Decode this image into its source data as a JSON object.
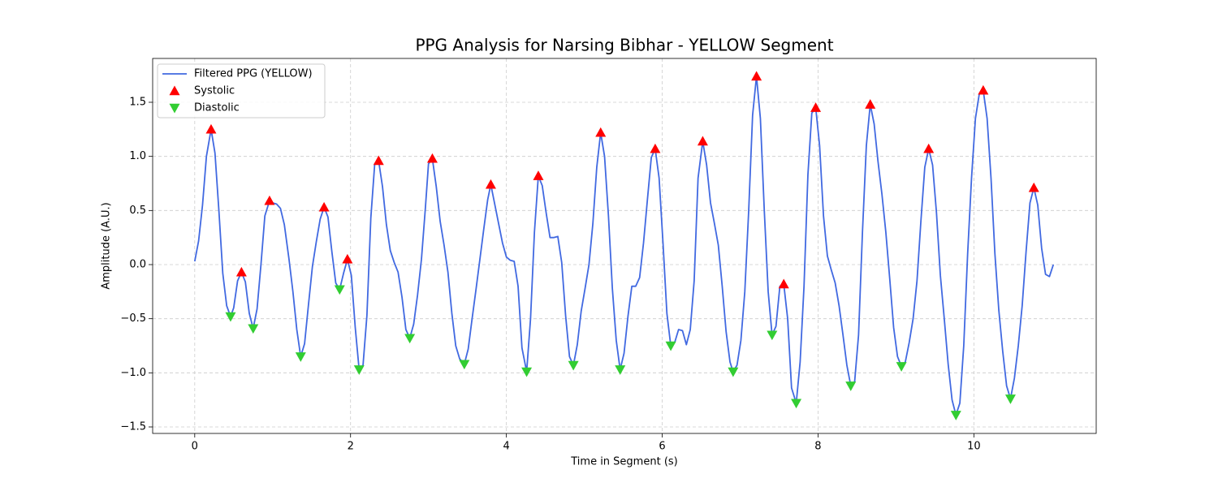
{
  "chart_data": {
    "type": "line",
    "title": "PPG Analysis for Narsing Bibhar - YELLOW Segment",
    "x_label": "Time in Segment (s)",
    "y_label": "Amplitude (A.U.)",
    "xlim": [
      -0.54,
      11.57
    ],
    "ylim": [
      -1.56,
      1.905
    ],
    "xticks": [
      0,
      2,
      4,
      6,
      8,
      10
    ],
    "yticks": [
      {
        "value": -1.5,
        "label": "−1.5"
      },
      {
        "value": -1.0,
        "label": "−1.0"
      },
      {
        "value": -0.5,
        "label": "−0.5"
      },
      {
        "value": 0,
        "label": "0.0"
      },
      {
        "value": 0.5,
        "label": "0.5"
      },
      {
        "value": 1.0,
        "label": "1.0"
      },
      {
        "value": 1.5,
        "label": "1.5"
      }
    ],
    "grid": true,
    "legend": "upper-left",
    "series": [
      {
        "name": "Filtered PPG (YELLOW)",
        "type": "line",
        "color": "#4169e1",
        "x": [
          0,
          0.05,
          0.1,
          0.15,
          0.21,
          0.26,
          0.31,
          0.36,
          0.41,
          0.46,
          0.5,
          0.55,
          0.6,
          0.65,
          0.7,
          0.75,
          0.8,
          0.85,
          0.9,
          0.96,
          1.0,
          1.05,
          1.1,
          1.15,
          1.21,
          1.26,
          1.31,
          1.36,
          1.41,
          1.46,
          1.51,
          1.56,
          1.61,
          1.66,
          1.71,
          1.76,
          1.81,
          1.86,
          1.91,
          1.96,
          2.01,
          2.06,
          2.11,
          2.16,
          2.21,
          2.26,
          2.31,
          2.36,
          2.41,
          2.46,
          2.51,
          2.56,
          2.61,
          2.66,
          2.71,
          2.76,
          2.81,
          2.86,
          2.91,
          2.96,
          3.0,
          3.05,
          3.1,
          3.15,
          3.2,
          3.25,
          3.3,
          3.35,
          3.4,
          3.46,
          3.51,
          3.56,
          3.61,
          3.66,
          3.71,
          3.76,
          3.8,
          3.85,
          3.9,
          3.95,
          4.0,
          4.05,
          4.1,
          4.15,
          4.2,
          4.26,
          4.31,
          4.36,
          4.41,
          4.46,
          4.51,
          4.56,
          4.61,
          4.66,
          4.71,
          4.76,
          4.81,
          4.86,
          4.91,
          4.96,
          5.01,
          5.06,
          5.11,
          5.16,
          5.21,
          5.26,
          5.31,
          5.36,
          5.41,
          5.46,
          5.51,
          5.56,
          5.61,
          5.66,
          5.71,
          5.76,
          5.81,
          5.86,
          5.91,
          5.96,
          6.01,
          6.06,
          6.11,
          6.16,
          6.21,
          6.26,
          6.31,
          6.36,
          6.41,
          6.46,
          6.52,
          6.57,
          6.62,
          6.67,
          6.72,
          6.77,
          6.82,
          6.87,
          6.91,
          6.96,
          7.01,
          7.06,
          7.11,
          7.16,
          7.21,
          7.26,
          7.31,
          7.36,
          7.41,
          7.46,
          7.51,
          7.56,
          7.61,
          7.66,
          7.72,
          7.77,
          7.82,
          7.87,
          7.92,
          7.97,
          8.02,
          8.07,
          8.12,
          8.17,
          8.22,
          8.27,
          8.32,
          8.37,
          8.42,
          8.47,
          8.52,
          8.57,
          8.62,
          8.67,
          8.72,
          8.77,
          8.82,
          8.87,
          8.92,
          8.97,
          9.02,
          9.07,
          9.12,
          9.17,
          9.22,
          9.27,
          9.32,
          9.37,
          9.42,
          9.47,
          9.52,
          9.57,
          9.62,
          9.67,
          9.72,
          9.77,
          9.82,
          9.87,
          9.92,
          9.97,
          10.02,
          10.07,
          10.12,
          10.17,
          10.22,
          10.27,
          10.32,
          10.37,
          10.42,
          10.47,
          10.52,
          10.57,
          10.62,
          10.67,
          10.72,
          10.77,
          10.82,
          10.87,
          10.92,
          10.97,
          11.02
        ],
        "values": [
          0.03,
          0.22,
          0.55,
          1.0,
          1.25,
          1.03,
          0.5,
          -0.08,
          -0.38,
          -0.48,
          -0.4,
          -0.15,
          -0.07,
          -0.16,
          -0.45,
          -0.59,
          -0.41,
          0.0,
          0.45,
          0.59,
          0.57,
          0.56,
          0.52,
          0.37,
          0.05,
          -0.25,
          -0.6,
          -0.85,
          -0.73,
          -0.37,
          -0.02,
          0.21,
          0.42,
          0.53,
          0.44,
          0.12,
          -0.17,
          -0.23,
          -0.08,
          0.05,
          -0.1,
          -0.58,
          -0.97,
          -0.93,
          -0.47,
          0.43,
          0.93,
          0.96,
          0.72,
          0.37,
          0.13,
          0.02,
          -0.07,
          -0.3,
          -0.6,
          -0.68,
          -0.55,
          -0.28,
          0.05,
          0.52,
          0.93,
          0.98,
          0.72,
          0.4,
          0.18,
          -0.07,
          -0.45,
          -0.75,
          -0.87,
          -0.92,
          -0.78,
          -0.5,
          -0.23,
          0.05,
          0.33,
          0.6,
          0.74,
          0.56,
          0.38,
          0.2,
          0.07,
          0.04,
          0.03,
          -0.2,
          -0.77,
          -0.99,
          -0.5,
          0.3,
          0.82,
          0.73,
          0.48,
          0.25,
          0.25,
          0.26,
          0.02,
          -0.47,
          -0.85,
          -0.93,
          -0.74,
          -0.43,
          -0.22,
          0.0,
          0.38,
          0.9,
          1.22,
          1.0,
          0.45,
          -0.22,
          -0.7,
          -0.97,
          -0.82,
          -0.48,
          -0.2,
          -0.2,
          -0.12,
          0.2,
          0.6,
          0.99,
          1.07,
          0.8,
          0.2,
          -0.45,
          -0.75,
          -0.72,
          -0.6,
          -0.61,
          -0.74,
          -0.6,
          -0.15,
          0.8,
          1.14,
          0.92,
          0.57,
          0.38,
          0.18,
          -0.2,
          -0.62,
          -0.9,
          -0.99,
          -0.93,
          -0.7,
          -0.25,
          0.5,
          1.38,
          1.74,
          1.35,
          0.5,
          -0.25,
          -0.65,
          -0.57,
          -0.2,
          -0.18,
          -0.5,
          -1.14,
          -1.28,
          -0.9,
          -0.2,
          0.83,
          1.4,
          1.45,
          1.1,
          0.45,
          0.08,
          -0.05,
          -0.17,
          -0.38,
          -0.65,
          -0.93,
          -1.12,
          -1.08,
          -0.65,
          0.3,
          1.1,
          1.48,
          1.3,
          0.95,
          0.65,
          0.3,
          -0.13,
          -0.58,
          -0.85,
          -0.94,
          -0.9,
          -0.72,
          -0.5,
          -0.15,
          0.4,
          0.9,
          1.07,
          0.92,
          0.48,
          -0.1,
          -0.5,
          -0.92,
          -1.25,
          -1.39,
          -1.28,
          -0.75,
          0.1,
          0.8,
          1.35,
          1.58,
          1.61,
          1.35,
          0.8,
          0.1,
          -0.42,
          -0.8,
          -1.12,
          -1.24,
          -1.05,
          -0.75,
          -0.38,
          0.12,
          0.57,
          0.71,
          0.55,
          0.15,
          -0.09,
          -0.11,
          0.0
        ]
      },
      {
        "name": "Systolic",
        "type": "scatter",
        "marker": "triangle-up",
        "color": "#ff0000",
        "x": [
          0.21,
          0.6,
          0.96,
          1.66,
          1.96,
          2.36,
          3.05,
          3.8,
          4.41,
          5.21,
          5.91,
          6.52,
          7.21,
          7.56,
          7.97,
          8.67,
          9.42,
          10.12,
          10.77
        ],
        "values": [
          1.25,
          -0.07,
          0.59,
          0.53,
          0.05,
          0.96,
          0.98,
          0.74,
          0.82,
          1.22,
          1.07,
          1.14,
          1.74,
          -0.18,
          1.45,
          1.48,
          1.07,
          1.61,
          0.71
        ]
      },
      {
        "name": "Diastolic",
        "type": "scatter",
        "marker": "triangle-down",
        "color": "#32cd32",
        "x": [
          0.46,
          0.75,
          1.36,
          1.86,
          2.11,
          2.76,
          3.46,
          4.26,
          4.86,
          5.46,
          6.11,
          6.91,
          7.41,
          7.72,
          8.42,
          9.07,
          9.77,
          10.47
        ],
        "values": [
          -0.48,
          -0.59,
          -0.85,
          -0.23,
          -0.97,
          -0.68,
          -0.92,
          -0.99,
          -0.93,
          -0.97,
          -0.75,
          -0.99,
          -0.65,
          -1.28,
          -1.12,
          -0.94,
          -1.39,
          -1.24
        ]
      }
    ]
  }
}
